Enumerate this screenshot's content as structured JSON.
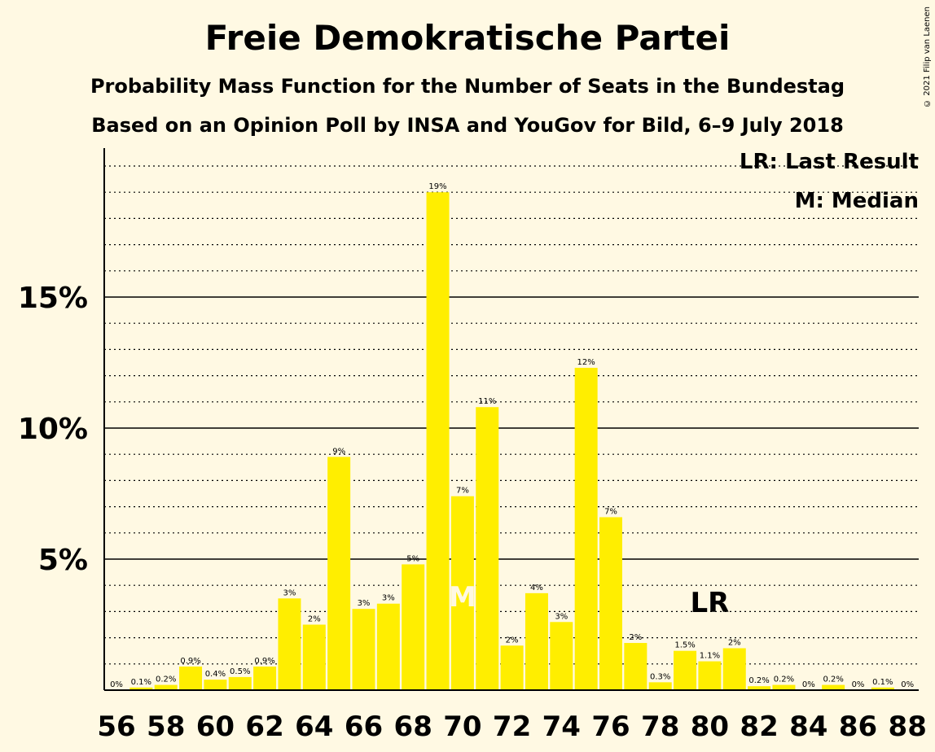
{
  "chart_data": {
    "type": "bar",
    "title": "Freie Demokratische Partei",
    "subtitle": "Probability Mass Function for the Number of Seats in the Bundestag",
    "subtitle2": "Based on an Opinion Poll by INSA and YouGov for Bild, 6–9 July 2018",
    "copyright": "© 2021 Filip van Laenen",
    "legend": [
      "LR: Last Result",
      "M: Median"
    ],
    "legend_placement": "top-right",
    "categories": [
      56,
      57,
      58,
      59,
      60,
      61,
      62,
      63,
      64,
      65,
      66,
      67,
      68,
      69,
      70,
      71,
      72,
      73,
      74,
      75,
      76,
      77,
      78,
      79,
      80,
      81,
      82,
      83,
      84,
      85,
      86,
      87,
      88
    ],
    "values": [
      0,
      0.1,
      0.2,
      0.9,
      0.4,
      0.5,
      0.9,
      3.5,
      2.5,
      8.9,
      3.1,
      3.3,
      4.8,
      19.0,
      7.4,
      10.8,
      1.7,
      3.7,
      2.6,
      12.3,
      6.6,
      1.8,
      0.3,
      1.5,
      1.1,
      1.6,
      0.15,
      0.2,
      0,
      0.2,
      0,
      0.1,
      0
    ],
    "data_labels": [
      "0%",
      "0.1%",
      "0.2%",
      "0.9%",
      "0.4%",
      "0.5%",
      "0.9%",
      "3%",
      "2%",
      "9%",
      "3%",
      "3%",
      "5%",
      "19%",
      "7%",
      "11%",
      "2%",
      "4%",
      "3%",
      "12%",
      "7%",
      "2%",
      "0.3%",
      "1.5%",
      "1.1%",
      "2%",
      "0.2%",
      "0.2%",
      "0%",
      "0.2%",
      "0%",
      "0.1%",
      "0%"
    ],
    "x_tick_labels": [
      "56",
      "58",
      "60",
      "62",
      "64",
      "66",
      "68",
      "70",
      "72",
      "74",
      "76",
      "78",
      "80",
      "82",
      "84",
      "86",
      "88"
    ],
    "y_tick_labels": [
      "5%",
      "10%",
      "15%"
    ],
    "y_ticks": [
      5,
      10,
      15
    ],
    "ylim": [
      0,
      20.6
    ],
    "median_seat": 70,
    "median_label": "M",
    "last_result_seat": 80,
    "last_result_label": "LR",
    "bar_color": "#FFEE00",
    "grid": true
  }
}
